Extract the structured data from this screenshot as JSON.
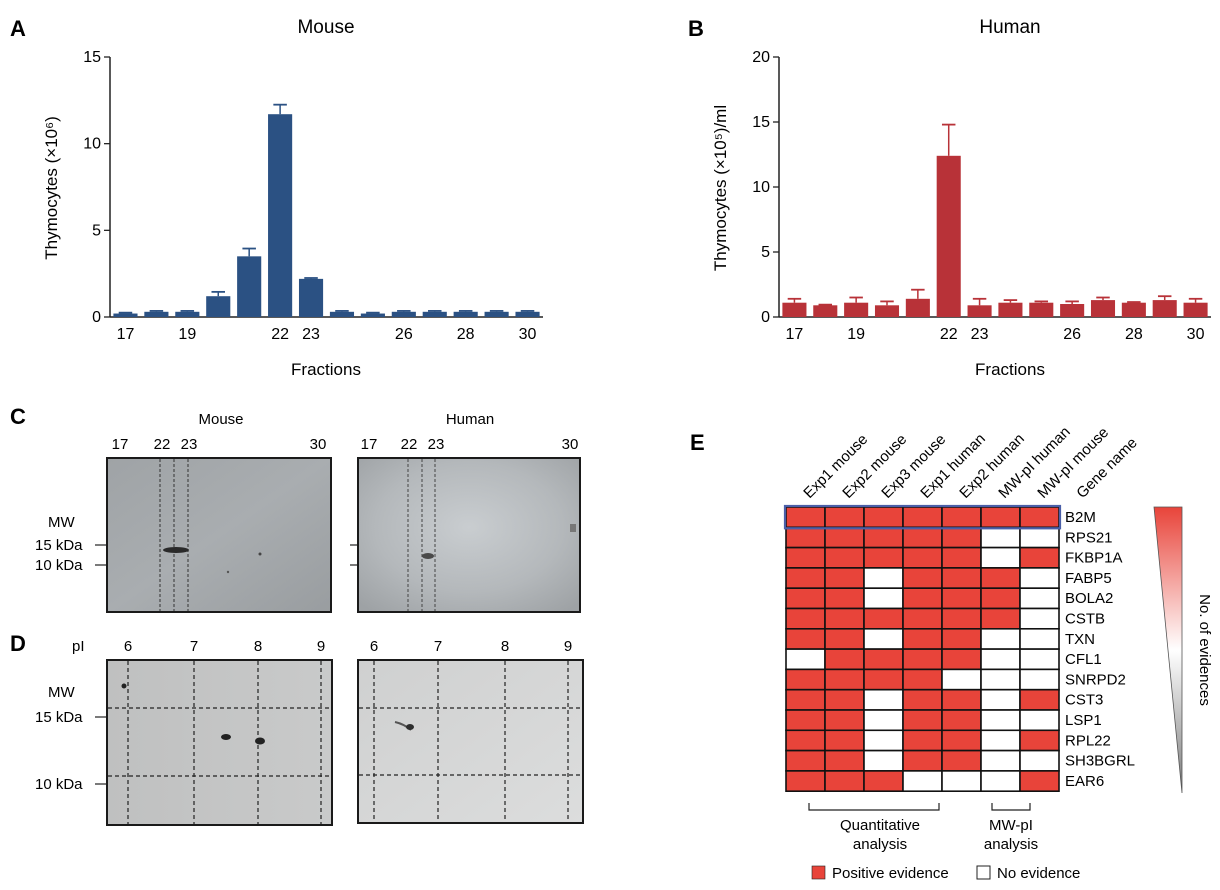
{
  "panel_labels": {
    "a": "A",
    "b": "B",
    "c": "C",
    "d": "D",
    "e": "E"
  },
  "chart_data": [
    {
      "type": "bar",
      "title": "Mouse",
      "xlabel": "Fractions",
      "ylabel": "Thymocytes (×10⁶)",
      "ylim": [
        0,
        15
      ],
      "yticks": [
        "0",
        "5",
        "10",
        "15"
      ],
      "color": "#2b5183",
      "categories": [
        "17",
        "18",
        "19",
        "20",
        "21",
        "22",
        "23",
        "24",
        "25",
        "26",
        "27",
        "28",
        "29",
        "30"
      ],
      "x_tick_labels": {
        "17": "17",
        "19": "19",
        "22": "22",
        "23": "23",
        "26": "26",
        "28": "28",
        "30": "30"
      },
      "values": [
        0.2,
        0.3,
        0.3,
        1.2,
        3.5,
        11.7,
        2.2,
        0.3,
        0.2,
        0.3,
        0.3,
        0.3,
        0.3,
        0.3
      ],
      "errors": [
        0.05,
        0.05,
        0.05,
        0.25,
        0.45,
        0.55,
        0.05,
        0.05,
        0.05,
        0.05,
        0.05,
        0.05,
        0.05,
        0.05
      ]
    },
    {
      "type": "bar",
      "title": "Human",
      "xlabel": "Fractions",
      "ylabel": "Thymocytes (×10⁵)/ml",
      "ylim": [
        0,
        20
      ],
      "yticks": [
        "0",
        "5",
        "10",
        "15",
        "20"
      ],
      "color": "#b83238",
      "categories": [
        "17",
        "18",
        "19",
        "20",
        "21",
        "22",
        "23",
        "24",
        "25",
        "26",
        "27",
        "28",
        "29",
        "30"
      ],
      "x_tick_labels": {
        "17": "17",
        "19": "19",
        "22": "22",
        "23": "23",
        "26": "26",
        "28": "28",
        "30": "30"
      },
      "values": [
        1.1,
        0.9,
        1.1,
        0.9,
        1.4,
        12.4,
        0.9,
        1.1,
        1.1,
        1.0,
        1.3,
        1.1,
        1.3,
        1.1
      ],
      "errors": [
        0.3,
        0.05,
        0.4,
        0.3,
        0.7,
        2.4,
        0.5,
        0.2,
        0.1,
        0.2,
        0.2,
        0.05,
        0.3,
        0.3
      ]
    },
    {
      "type": "heatmap",
      "title": "",
      "columns": [
        "Exp1 mouse",
        "Exp2 mouse",
        "Exp3 mouse",
        "Exp1 human",
        "Exp2 human",
        "MW-pI human",
        "MW-pI mouse",
        "Gene name"
      ],
      "genes": [
        "B2M",
        "RPS21",
        "FKBP1A",
        "FABP5",
        "BOLA2",
        "CSTB",
        "TXN",
        "CFL1",
        "SNRPD2",
        "CST3",
        "LSP1",
        "RPL22",
        "SH3BGRL",
        "EAR6"
      ],
      "matrix": [
        [
          1,
          1,
          1,
          1,
          1,
          1,
          1
        ],
        [
          1,
          1,
          1,
          1,
          1,
          0,
          0
        ],
        [
          1,
          1,
          1,
          1,
          1,
          0,
          1
        ],
        [
          1,
          1,
          0,
          1,
          1,
          1,
          0
        ],
        [
          1,
          1,
          0,
          1,
          1,
          1,
          0
        ],
        [
          1,
          1,
          1,
          1,
          1,
          1,
          0
        ],
        [
          1,
          1,
          0,
          1,
          1,
          0,
          0
        ],
        [
          0,
          1,
          1,
          1,
          1,
          0,
          0
        ],
        [
          1,
          1,
          1,
          1,
          0,
          0,
          0
        ],
        [
          1,
          1,
          0,
          1,
          1,
          0,
          1
        ],
        [
          1,
          1,
          0,
          1,
          1,
          0,
          0
        ],
        [
          1,
          1,
          0,
          1,
          1,
          0,
          1
        ],
        [
          1,
          1,
          0,
          1,
          1,
          0,
          0
        ],
        [
          1,
          1,
          1,
          0,
          0,
          0,
          1
        ]
      ],
      "highlighted_gene": "B2M",
      "positive_color": "#e8443a",
      "negative_color": "#ffffff",
      "gradient_label": "No. of evidences",
      "brackets": [
        "Quantitative analysis",
        "MW-pI analysis"
      ],
      "legend": {
        "positive": "Positive evidence",
        "negative": "No evidence"
      }
    }
  ],
  "panel_c": {
    "mouse_title": "Mouse",
    "human_title": "Human",
    "lane_labels": [
      "17",
      "22",
      "23",
      "30"
    ],
    "mw_title": "MW",
    "mw_markers": [
      "15 kDa",
      "10 kDa"
    ]
  },
  "panel_d": {
    "pi_label": "pI",
    "pi_values": [
      "6",
      "7",
      "8",
      "9"
    ],
    "mw_title": "MW",
    "mw_markers": [
      "15 kDa",
      "10 kDa"
    ]
  }
}
